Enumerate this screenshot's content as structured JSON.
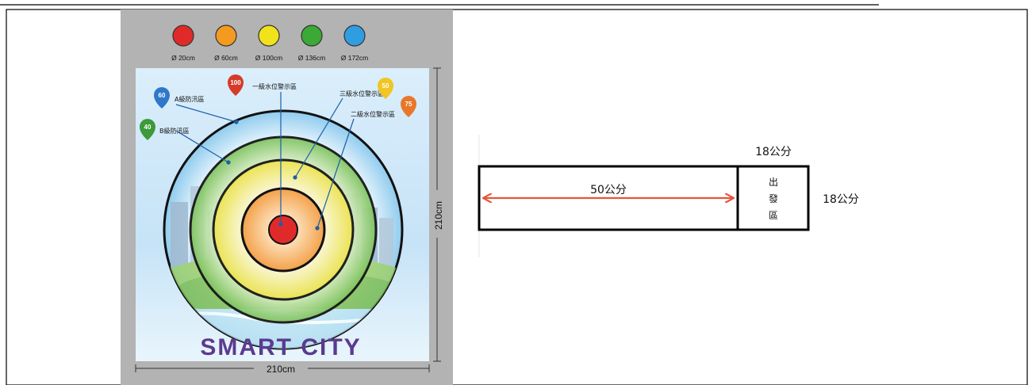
{
  "poster": {
    "legend": [
      {
        "color": "#e02a2a",
        "label": "Ø 20cm"
      },
      {
        "color": "#f39a1f",
        "label": "Ø 60cm"
      },
      {
        "color": "#f2e21c",
        "label": "Ø 100cm"
      },
      {
        "color": "#3aa935",
        "label": "Ø 136cm"
      },
      {
        "color": "#2f9de0",
        "label": "Ø 172cm"
      }
    ],
    "zones": {
      "level1": "一級水位警示區",
      "level2": "二級水位警示區",
      "level3": "三級水位警示區",
      "zone_a": "A級防汛區",
      "zone_b": "B級防汛區"
    },
    "markers": [
      "100",
      "60",
      "40",
      "50",
      "75"
    ],
    "title": "SMART CITY",
    "height_dim": "210cm",
    "width_dim": "210cm"
  },
  "start_area": {
    "length": "50公分",
    "top_width": "18公分",
    "side_width": "18公分",
    "label_chars": [
      "出",
      "發",
      "區"
    ]
  },
  "colors": {
    "gray_bg": "#b3b3b3",
    "arrow": "#e8553a",
    "title": "#5b3a8f"
  }
}
